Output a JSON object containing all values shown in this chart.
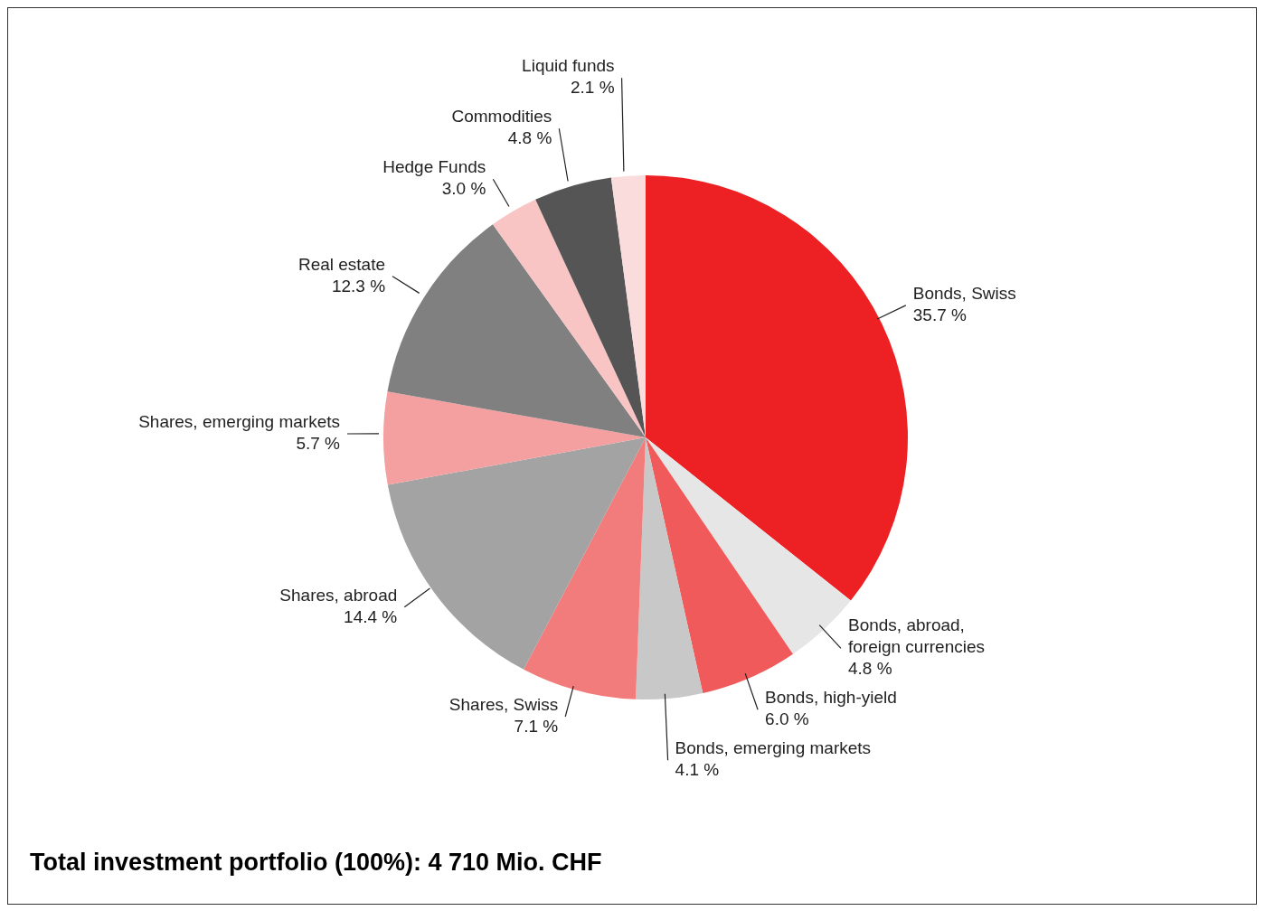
{
  "chart_data": {
    "type": "pie",
    "title": "Total investment portfolio (100%): 4 710 Mio. CHF",
    "categories": [
      "Bonds, Swiss",
      "Bonds, abroad, foreign currencies",
      "Bonds, high-yield",
      "Bonds, emerging markets",
      "Shares, Swiss",
      "Shares, abroad",
      "Shares, emerging markets",
      "Real estate",
      "Hedge Funds",
      "Commodities",
      "Liquid funds"
    ],
    "values": [
      35.7,
      4.8,
      6.0,
      4.1,
      7.1,
      14.4,
      5.7,
      12.3,
      3.0,
      4.8,
      2.1
    ],
    "value_labels": [
      "35.7 %",
      "4.8 %",
      "6.0 %",
      "4.1 %",
      "7.1 %",
      "14.4 %",
      "5.7 %",
      "12.3 %",
      "3.0 %",
      "4.8 %",
      "2.1 %"
    ],
    "colors": [
      "#ed2024",
      "#e6e6e6",
      "#f05a5a",
      "#c8c8c8",
      "#f27b7b",
      "#a3a3a3",
      "#f4a0a0",
      "#808080",
      "#f8c4c4",
      "#555555",
      "#fbdcdc"
    ],
    "legend": false
  }
}
